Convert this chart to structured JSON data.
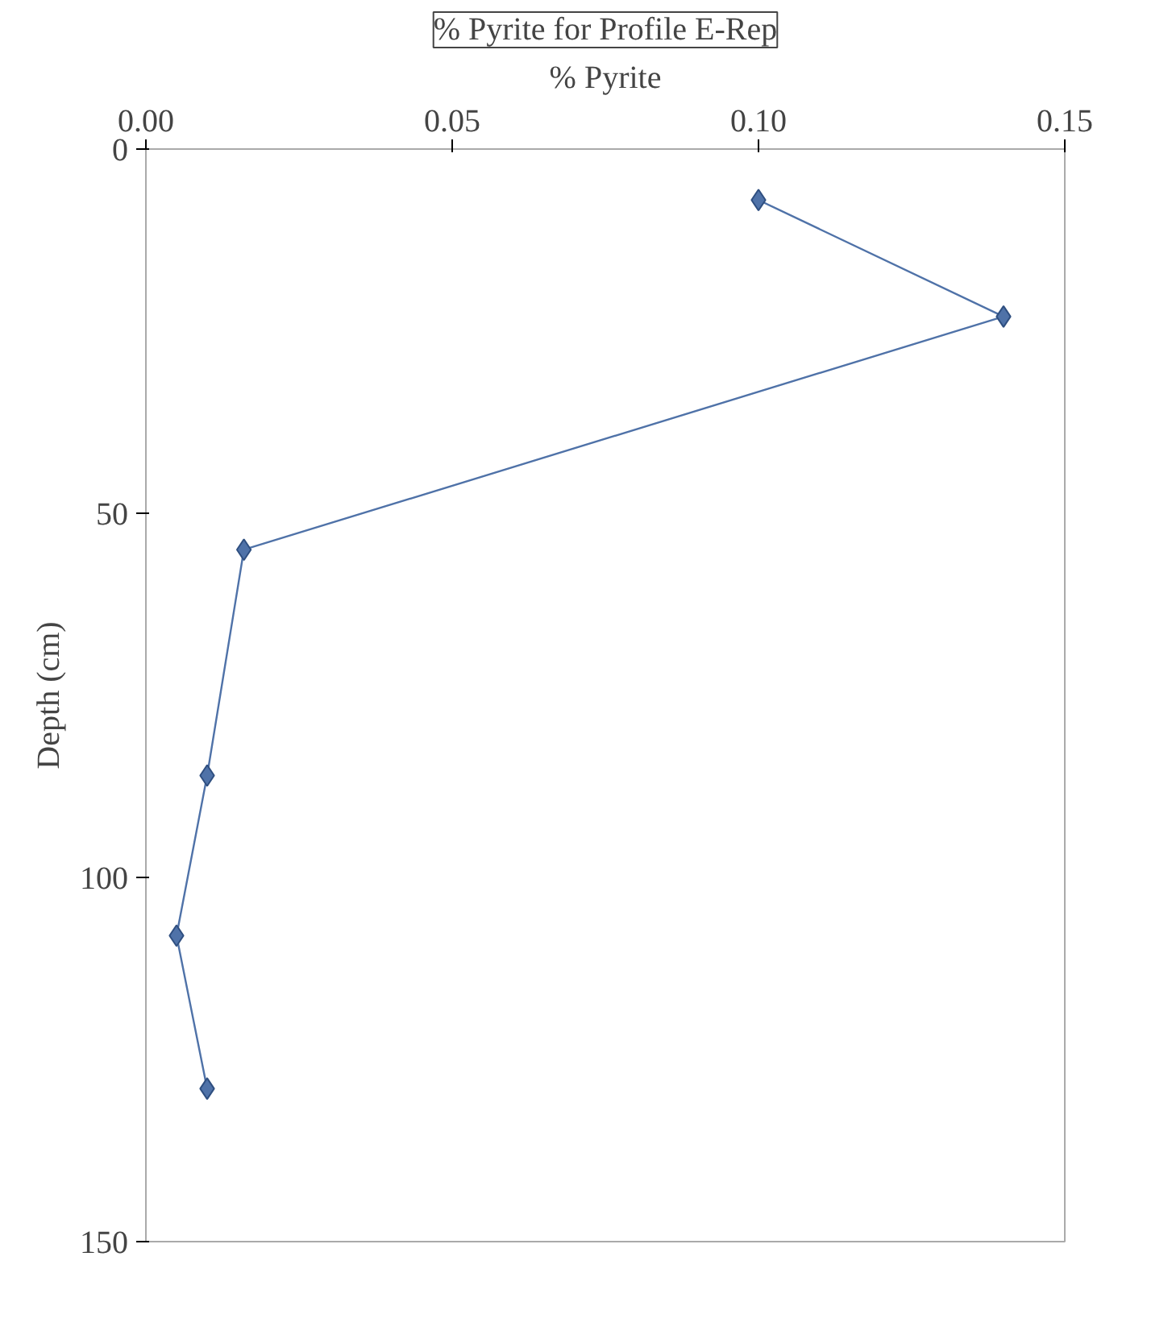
{
  "chart_data": {
    "type": "line",
    "title": "% Pyrite for Profile E-Rep",
    "xlabel": "% Pyrite",
    "ylabel": "Depth (cm)",
    "marker": "diamond",
    "grid": false,
    "series": [
      {
        "color": "#4f72a8",
        "x": [
          0.1,
          0.14,
          0.016,
          0.01,
          0.005,
          0.01
        ],
        "values": [
          7,
          23,
          55,
          86,
          108,
          129
        ]
      }
    ],
    "xlim": [
      0,
      0.15
    ],
    "xticks": [
      {
        "value": 0,
        "label": "0.00"
      },
      {
        "value": 0.05,
        "label": "0.05"
      },
      {
        "value": 0.1,
        "label": "0.10"
      },
      {
        "value": 0.15,
        "label": "0.15"
      }
    ],
    "ylim": [
      150,
      0
    ],
    "yticks": [
      0,
      50,
      100,
      150
    ]
  }
}
